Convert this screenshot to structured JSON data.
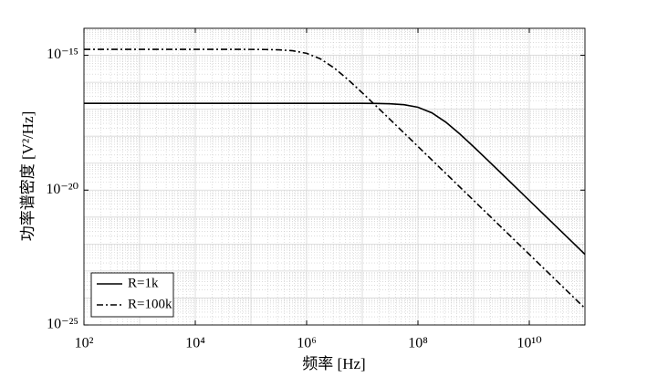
{
  "chart_data": {
    "type": "line",
    "xlabel": "频率  [Hz]",
    "ylabel": "功率谱密度  [V²/Hz]",
    "xscale": "log",
    "yscale": "log",
    "grid": true,
    "legend": "lower left",
    "xlim": [
      100,
      100000000000
    ],
    "ylim": [
      1e-25,
      1e-14
    ],
    "xticks": [
      {
        "value": 100,
        "label": "10²"
      },
      {
        "value": 10000,
        "label": "10⁴"
      },
      {
        "value": 1000000,
        "label": "10⁶"
      },
      {
        "value": 100000000,
        "label": "10⁸"
      },
      {
        "value": 10000000000,
        "label": "10¹⁰"
      }
    ],
    "yticks": [
      {
        "value": 1e-25,
        "label": "10⁻²⁵"
      },
      {
        "value": 1e-20,
        "label": "10⁻²⁰"
      },
      {
        "value": 1e-15,
        "label": "10⁻¹⁵"
      }
    ],
    "x": [
      100,
      177.8,
      316.2,
      562.3,
      1000,
      1778,
      3162,
      5623,
      10000,
      17783,
      31623,
      56234,
      100000,
      177828,
      316228,
      562341,
      1000000,
      1778279,
      3162278,
      5623413,
      10000000,
      17780000,
      31620000,
      56230000,
      100000000,
      177800000,
      316200000,
      562300000,
      1000000000,
      1778000000,
      3162000000,
      5623000000,
      10000000000,
      17780000000,
      31620000000,
      56230000000,
      100000000000
    ],
    "series": [
      {
        "name": "R=1k",
        "color": "#000000",
        "linestyle": "solid",
        "values": [
          1.656e-17,
          1.656e-17,
          1.656e-17,
          1.656e-17,
          1.656e-17,
          1.656e-17,
          1.656e-17,
          1.656e-17,
          1.656e-17,
          1.656e-17,
          1.656e-17,
          1.656e-17,
          1.656e-17,
          1.656e-17,
          1.656e-17,
          1.656e-17,
          1.656e-17,
          1.656e-17,
          1.656e-17,
          1.654e-17,
          1.649e-17,
          1.635e-17,
          1.593e-17,
          1.471e-17,
          1.184e-17,
          7.33e-18,
          3.32e-18,
          1.219e-18,
          4.06e-19,
          1.305e-19,
          4.15e-20,
          1.314e-20,
          4.16e-21,
          1.315e-21,
          4.16e-22,
          1.316e-22,
          4.16e-23
        ]
      },
      {
        "name": "R=100k",
        "color": "#000000",
        "linestyle": "dashdot",
        "values": [
          1.656e-15,
          1.656e-15,
          1.656e-15,
          1.656e-15,
          1.656e-15,
          1.656e-15,
          1.656e-15,
          1.656e-15,
          1.656e-15,
          1.656e-15,
          1.656e-15,
          1.654e-15,
          1.649e-15,
          1.635e-15,
          1.593e-15,
          1.471e-15,
          1.184e-15,
          7.33e-16,
          3.32e-16,
          1.219e-16,
          4.06e-17,
          1.305e-17,
          4.15e-18,
          1.314e-18,
          4.16e-19,
          1.315e-19,
          4.16e-20,
          1.316e-20,
          4.16e-21,
          1.316e-21,
          4.16e-22,
          1.316e-22,
          4.16e-23,
          1.316e-23,
          4.16e-24,
          1.316e-24,
          4.16e-25
        ]
      }
    ]
  }
}
